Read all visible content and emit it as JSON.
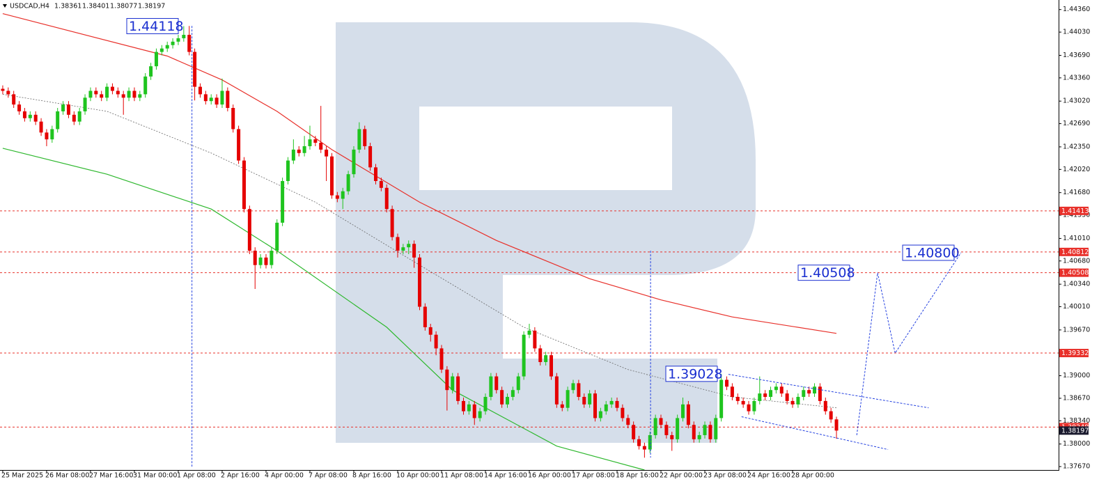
{
  "chart_data": {
    "type": "candlestick",
    "title": "USDCAD,H4",
    "xlim": [
      -0.5,
      192.5
    ],
    "ylim": [
      1.3762,
      1.445
    ],
    "xticks": [
      {
        "value": 0,
        "label": "25 Mar 2025"
      },
      {
        "value": 8,
        "label": "26 Mar 08:00"
      },
      {
        "value": 16,
        "label": "27 Mar 16:00"
      },
      {
        "value": 24,
        "label": "31 Mar 00:00"
      },
      {
        "value": 32,
        "label": "1 Apr 08:00"
      },
      {
        "value": 40,
        "label": "2 Apr 16:00"
      },
      {
        "value": 48,
        "label": "4 Apr 00:00"
      },
      {
        "value": 56,
        "label": "7 Apr 08:00"
      },
      {
        "value": 64,
        "label": "8 Apr 16:00"
      },
      {
        "value": 72,
        "label": "10 Apr 00:00"
      },
      {
        "value": 80,
        "label": "11 Apr 08:00"
      },
      {
        "value": 88,
        "label": "14 Apr 16:00"
      },
      {
        "value": 96,
        "label": "16 Apr 00:00"
      },
      {
        "value": 104,
        "label": "17 Apr 08:00"
      },
      {
        "value": 112,
        "label": "18 Apr 16:00"
      },
      {
        "value": 120,
        "label": "22 Apr 00:00"
      },
      {
        "value": 128,
        "label": "23 Apr 08:00"
      },
      {
        "value": 136,
        "label": "24 Apr 16:00"
      },
      {
        "value": 144,
        "label": "28 Apr 00:00"
      }
    ],
    "yticks": [
      {
        "value": 1.4436,
        "label": "1.44360"
      },
      {
        "value": 1.4403,
        "label": "1.44030"
      },
      {
        "value": 1.4369,
        "label": "1.43690"
      },
      {
        "value": 1.4336,
        "label": "1.43360"
      },
      {
        "value": 1.4302,
        "label": "1.43020"
      },
      {
        "value": 1.4269,
        "label": "1.42690"
      },
      {
        "value": 1.4235,
        "label": "1.42350"
      },
      {
        "value": 1.4202,
        "label": "1.42020"
      },
      {
        "value": 1.4168,
        "label": "1.41680"
      },
      {
        "value": 1.4135,
        "label": "1.41350"
      },
      {
        "value": 1.4101,
        "label": "1.41010"
      },
      {
        "value": 1.4068,
        "label": "1.40680"
      },
      {
        "value": 1.4034,
        "label": "1.40340"
      },
      {
        "value": 1.4001,
        "label": "1.40010"
      },
      {
        "value": 1.3967,
        "label": "1.39670"
      },
      {
        "value": 1.39,
        "label": "1.39000"
      },
      {
        "value": 1.3867,
        "label": "1.38670"
      },
      {
        "value": 1.3834,
        "label": "1.38340"
      },
      {
        "value": 1.38,
        "label": "1.38000"
      },
      {
        "value": 1.3767,
        "label": "1.37670"
      }
    ],
    "colors": {
      "up": "#1fc41f",
      "down": "#e50000"
    },
    "candles": [
      [
        1.432,
        1.4325,
        1.4312,
        1.4317
      ],
      [
        1.4317,
        1.4322,
        1.4307,
        1.4312
      ],
      [
        1.4312,
        1.4317,
        1.4292,
        1.4297
      ],
      [
        1.4297,
        1.4302,
        1.4282,
        1.4287
      ],
      [
        1.4287,
        1.4292,
        1.4272,
        1.4277
      ],
      [
        1.4277,
        1.4287,
        1.4272,
        1.4282
      ],
      [
        1.4282,
        1.4287,
        1.4267,
        1.4272
      ],
      [
        1.4272,
        1.4277,
        1.4251,
        1.4256
      ],
      [
        1.4256,
        1.4261,
        1.4236,
        1.4246
      ],
      [
        1.4246,
        1.4266,
        1.4241,
        1.4261
      ],
      [
        1.4261,
        1.4292,
        1.4256,
        1.4287
      ],
      [
        1.4287,
        1.4302,
        1.4282,
        1.4297
      ],
      [
        1.4297,
        1.4302,
        1.4277,
        1.4282
      ],
      [
        1.4282,
        1.4287,
        1.4267,
        1.4272
      ],
      [
        1.4272,
        1.4292,
        1.4267,
        1.4287
      ],
      [
        1.4287,
        1.4312,
        1.4282,
        1.4307
      ],
      [
        1.4307,
        1.4322,
        1.4302,
        1.4317
      ],
      [
        1.4317,
        1.4322,
        1.4307,
        1.4312
      ],
      [
        1.4312,
        1.4317,
        1.4302,
        1.4307
      ],
      [
        1.4307,
        1.4328,
        1.4302,
        1.4323
      ],
      [
        1.4323,
        1.4328,
        1.4312,
        1.4317
      ],
      [
        1.4317,
        1.4322,
        1.4307,
        1.4312
      ],
      [
        1.4312,
        1.4317,
        1.4282,
        1.4307
      ],
      [
        1.4307,
        1.4322,
        1.4302,
        1.4317
      ],
      [
        1.4317,
        1.4322,
        1.4302,
        1.4307
      ],
      [
        1.4307,
        1.4317,
        1.4302,
        1.4312
      ],
      [
        1.4312,
        1.4343,
        1.4307,
        1.4338
      ],
      [
        1.4338,
        1.4358,
        1.4333,
        1.4353
      ],
      [
        1.4353,
        1.4379,
        1.4348,
        1.4374
      ],
      [
        1.4374,
        1.4384,
        1.4369,
        1.4379
      ],
      [
        1.4379,
        1.4389,
        1.4374,
        1.4384
      ],
      [
        1.4384,
        1.4394,
        1.4379,
        1.4389
      ],
      [
        1.4389,
        1.4399,
        1.4384,
        1.4394
      ],
      [
        1.4394,
        1.44118,
        1.4389,
        1.4399
      ],
      [
        1.4399,
        1.4412,
        1.4369,
        1.4374
      ],
      [
        1.4374,
        1.4379,
        1.4303,
        1.4323
      ],
      [
        1.4323,
        1.4328,
        1.4307,
        1.4312
      ],
      [
        1.4312,
        1.4317,
        1.4297,
        1.4302
      ],
      [
        1.4302,
        1.4312,
        1.4297,
        1.4307
      ],
      [
        1.4307,
        1.4312,
        1.4292,
        1.4297
      ],
      [
        1.4297,
        1.4335,
        1.4292,
        1.4317
      ],
      [
        1.4317,
        1.4322,
        1.4287,
        1.4292
      ],
      [
        1.4292,
        1.4297,
        1.4256,
        1.4261
      ],
      [
        1.4261,
        1.4266,
        1.421,
        1.4215
      ],
      [
        1.4215,
        1.422,
        1.4139,
        1.4144
      ],
      [
        1.4144,
        1.4149,
        1.4078,
        1.4083
      ],
      [
        1.4083,
        1.4088,
        1.4027,
        1.4062
      ],
      [
        1.4062,
        1.4078,
        1.4057,
        1.4073
      ],
      [
        1.4073,
        1.4078,
        1.4057,
        1.4062
      ],
      [
        1.4062,
        1.4088,
        1.4057,
        1.4083
      ],
      [
        1.4083,
        1.4129,
        1.4078,
        1.4124
      ],
      [
        1.4124,
        1.419,
        1.4119,
        1.4185
      ],
      [
        1.4185,
        1.422,
        1.418,
        1.4215
      ],
      [
        1.4215,
        1.4246,
        1.421,
        1.4231
      ],
      [
        1.4231,
        1.4236,
        1.4221,
        1.4226
      ],
      [
        1.4226,
        1.4251,
        1.4221,
        1.4236
      ],
      [
        1.4236,
        1.4266,
        1.4231,
        1.4246
      ],
      [
        1.4246,
        1.4251,
        1.4236,
        1.4241
      ],
      [
        1.4241,
        1.4295,
        1.4226,
        1.4231
      ],
      [
        1.4231,
        1.4236,
        1.4185,
        1.4221
      ],
      [
        1.4221,
        1.4226,
        1.4159,
        1.4164
      ],
      [
        1.4164,
        1.4169,
        1.4154,
        1.4159
      ],
      [
        1.4159,
        1.4175,
        1.4144,
        1.417
      ],
      [
        1.417,
        1.42,
        1.4165,
        1.4195
      ],
      [
        1.4195,
        1.4236,
        1.419,
        1.4231
      ],
      [
        1.4231,
        1.4271,
        1.4226,
        1.4261
      ],
      [
        1.4261,
        1.4266,
        1.4231,
        1.4236
      ],
      [
        1.4236,
        1.4241,
        1.42,
        1.4205
      ],
      [
        1.4205,
        1.421,
        1.418,
        1.4185
      ],
      [
        1.4185,
        1.419,
        1.417,
        1.4175
      ],
      [
        1.4175,
        1.418,
        1.4139,
        1.4144
      ],
      [
        1.4144,
        1.4149,
        1.4098,
        1.4103
      ],
      [
        1.4103,
        1.4108,
        1.4073,
        1.4083
      ],
      [
        1.4083,
        1.4093,
        1.4078,
        1.4088
      ],
      [
        1.4088,
        1.4098,
        1.4078,
        1.4093
      ],
      [
        1.4093,
        1.4098,
        1.4058,
        1.4073
      ],
      [
        1.4073,
        1.4078,
        1.3996,
        1.4001
      ],
      [
        1.4001,
        1.4006,
        1.3966,
        1.3971
      ],
      [
        1.3971,
        1.3976,
        1.395,
        1.396
      ],
      [
        1.396,
        1.3965,
        1.393,
        1.394
      ],
      [
        1.394,
        1.3945,
        1.3904,
        1.3909
      ],
      [
        1.3909,
        1.3914,
        1.3849,
        1.3879
      ],
      [
        1.3879,
        1.3904,
        1.3874,
        1.3899
      ],
      [
        1.3899,
        1.3904,
        1.3858,
        1.3863
      ],
      [
        1.3863,
        1.3868,
        1.3843,
        1.3848
      ],
      [
        1.3848,
        1.3863,
        1.3843,
        1.3858
      ],
      [
        1.3858,
        1.3863,
        1.3828,
        1.3838
      ],
      [
        1.3838,
        1.3853,
        1.3833,
        1.3848
      ],
      [
        1.3848,
        1.3874,
        1.3843,
        1.3869
      ],
      [
        1.3869,
        1.3904,
        1.3864,
        1.3899
      ],
      [
        1.3899,
        1.3904,
        1.3874,
        1.3879
      ],
      [
        1.3879,
        1.3884,
        1.3853,
        1.3858
      ],
      [
        1.3858,
        1.3874,
        1.3853,
        1.3869
      ],
      [
        1.3869,
        1.3884,
        1.3864,
        1.3879
      ],
      [
        1.3879,
        1.3904,
        1.3874,
        1.3899
      ],
      [
        1.3899,
        1.3965,
        1.3894,
        1.396
      ],
      [
        1.396,
        1.3976,
        1.3955,
        1.3966
      ],
      [
        1.3966,
        1.3971,
        1.3935,
        1.394
      ],
      [
        1.394,
        1.3945,
        1.3915,
        1.392
      ],
      [
        1.392,
        1.3935,
        1.3915,
        1.393
      ],
      [
        1.393,
        1.3935,
        1.3894,
        1.3899
      ],
      [
        1.3899,
        1.3904,
        1.3853,
        1.3858
      ],
      [
        1.3858,
        1.3863,
        1.3848,
        1.3853
      ],
      [
        1.3853,
        1.3884,
        1.3848,
        1.3879
      ],
      [
        1.3879,
        1.3894,
        1.3874,
        1.3889
      ],
      [
        1.3889,
        1.3894,
        1.3864,
        1.3869
      ],
      [
        1.3869,
        1.3874,
        1.3853,
        1.3858
      ],
      [
        1.3858,
        1.3879,
        1.3853,
        1.3874
      ],
      [
        1.3874,
        1.3879,
        1.3833,
        1.3838
      ],
      [
        1.3838,
        1.3853,
        1.3833,
        1.3848
      ],
      [
        1.3848,
        1.3863,
        1.3843,
        1.3858
      ],
      [
        1.3858,
        1.3868,
        1.3853,
        1.3863
      ],
      [
        1.3863,
        1.3868,
        1.3848,
        1.3853
      ],
      [
        1.3853,
        1.3858,
        1.3833,
        1.3838
      ],
      [
        1.3838,
        1.3843,
        1.3823,
        1.3828
      ],
      [
        1.3828,
        1.3833,
        1.3802,
        1.3807
      ],
      [
        1.3807,
        1.3812,
        1.3792,
        1.3797
      ],
      [
        1.3797,
        1.3802,
        1.378,
        1.3792
      ],
      [
        1.3792,
        1.3818,
        1.3787,
        1.3813
      ],
      [
        1.3813,
        1.3843,
        1.3808,
        1.3838
      ],
      [
        1.3838,
        1.3843,
        1.3823,
        1.3828
      ],
      [
        1.3828,
        1.3833,
        1.3808,
        1.3813
      ],
      [
        1.3813,
        1.3818,
        1.379,
        1.3807
      ],
      [
        1.3807,
        1.3843,
        1.3802,
        1.3838
      ],
      [
        1.3838,
        1.3868,
        1.3833,
        1.3858
      ],
      [
        1.3858,
        1.3863,
        1.3823,
        1.3828
      ],
      [
        1.3828,
        1.3833,
        1.3802,
        1.3807
      ],
      [
        1.3807,
        1.3818,
        1.3802,
        1.3813
      ],
      [
        1.3813,
        1.3833,
        1.3808,
        1.3828
      ],
      [
        1.3828,
        1.3833,
        1.3802,
        1.3807
      ],
      [
        1.3807,
        1.3843,
        1.3802,
        1.3838
      ],
      [
        1.3838,
        1.39028,
        1.3833,
        1.3894
      ],
      [
        1.3894,
        1.3899,
        1.3879,
        1.3884
      ],
      [
        1.3884,
        1.3889,
        1.3864,
        1.3869
      ],
      [
        1.3869,
        1.3874,
        1.3858,
        1.3863
      ],
      [
        1.3863,
        1.3868,
        1.3853,
        1.3858
      ],
      [
        1.3858,
        1.3863,
        1.3843,
        1.3848
      ],
      [
        1.3848,
        1.3868,
        1.3843,
        1.3863
      ],
      [
        1.3863,
        1.3899,
        1.3858,
        1.3874
      ],
      [
        1.3874,
        1.3879,
        1.3864,
        1.3869
      ],
      [
        1.3869,
        1.3884,
        1.3864,
        1.3879
      ],
      [
        1.3879,
        1.3889,
        1.3874,
        1.3884
      ],
      [
        1.3884,
        1.3889,
        1.3869,
        1.3874
      ],
      [
        1.3874,
        1.3879,
        1.3858,
        1.3863
      ],
      [
        1.3863,
        1.3868,
        1.3853,
        1.3858
      ],
      [
        1.3858,
        1.3874,
        1.3853,
        1.3869
      ],
      [
        1.3869,
        1.3884,
        1.3864,
        1.3879
      ],
      [
        1.3879,
        1.3884,
        1.3869,
        1.3874
      ],
      [
        1.3874,
        1.3889,
        1.3869,
        1.3884
      ],
      [
        1.3884,
        1.3889,
        1.3858,
        1.3863
      ],
      [
        1.3863,
        1.3868,
        1.3843,
        1.3848
      ],
      [
        1.3848,
        1.3853,
        1.3831,
        1.3836
      ],
      [
        1.38361,
        1.38401,
        1.38077,
        1.38197
      ]
    ],
    "indicators": [
      {
        "color": "#e8302a",
        "dash": false,
        "x": [
          0,
          30,
          40,
          50,
          60,
          76,
          90,
          107,
          120,
          133,
          152
        ],
        "values": [
          1.443,
          1.4368,
          1.4333,
          1.4287,
          1.4231,
          1.4154,
          1.4098,
          1.4042,
          1.4011,
          1.3986,
          1.3962
        ]
      },
      {
        "color": "#2fb82f",
        "dash": false,
        "x": [
          0,
          19,
          38,
          50,
          70,
          82,
          101,
          117
        ],
        "values": [
          1.4233,
          1.4195,
          1.4144,
          1.4083,
          1.3971,
          1.3879,
          1.3797,
          1.3762
        ]
      },
      {
        "color": "#666666",
        "dash": true,
        "x": [
          0,
          19,
          38,
          57,
          76,
          95,
          114,
          133,
          152
        ],
        "values": [
          1.4312,
          1.4287,
          1.4226,
          1.4154,
          1.4062,
          1.3971,
          1.3909,
          1.3869,
          1.3853
        ]
      }
    ],
    "levels": {
      "color": "#e8302a",
      "values": [
        1.41413,
        1.40812,
        1.40508,
        1.39332,
        1.38248
      ]
    },
    "forecast": {
      "color": "#2340e0",
      "lines": [
        {
          "x": [
            34.5,
            34.5
          ],
          "values": [
            1.4412,
            1.3767
          ]
        },
        {
          "x": [
            118.1,
            118.1
          ],
          "values": [
            1.4083,
            1.378
          ]
        },
        {
          "x": [
            155.7,
            159.5,
            162.7,
            174.7
          ],
          "values": [
            1.3813,
            1.40508,
            1.3933,
            1.408
          ]
        },
        {
          "x": [
            132.3,
            168.8
          ],
          "values": [
            1.3902,
            1.3853
          ]
        },
        {
          "x": [
            134.7,
            161.4
          ],
          "values": [
            1.384,
            1.3792
          ]
        }
      ]
    },
    "annotations": [
      {
        "value": 1.44118,
        "label": "1.44118"
      },
      {
        "value": 1.39028,
        "label": "1.39028"
      },
      {
        "value": 1.40508,
        "label": "1.40508"
      },
      {
        "value": 1.408,
        "label": "1.40800"
      }
    ]
  }
}
